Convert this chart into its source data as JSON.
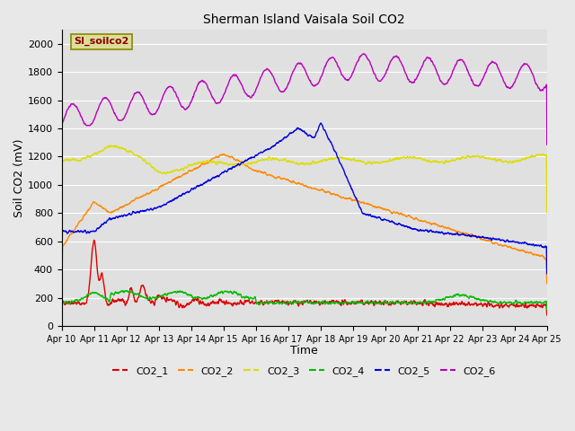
{
  "title": "Sherman Island Vaisala Soil CO2",
  "xlabel": "Time",
  "ylabel": "Soil CO2 (mV)",
  "ylim": [
    0,
    2100
  ],
  "yticks": [
    0,
    200,
    400,
    600,
    800,
    1000,
    1200,
    1400,
    1600,
    1800,
    2000
  ],
  "xlim": [
    0,
    15
  ],
  "xtick_labels": [
    "Apr 10",
    "Apr 11",
    "Apr 12",
    "Apr 13",
    "Apr 14",
    "Apr 15",
    "Apr 16",
    "Apr 17",
    "Apr 18",
    "Apr 19",
    "Apr 20",
    "Apr 21",
    "Apr 22",
    "Apr 23",
    "Apr 24",
    "Apr 25"
  ],
  "colors": {
    "CO2_1": "#dd0000",
    "CO2_2": "#ff8800",
    "CO2_3": "#dddd00",
    "CO2_4": "#00bb00",
    "CO2_5": "#0000dd",
    "CO2_6": "#bb00bb"
  },
  "legend_label": "SI_soilco2",
  "legend_box_facecolor": "#dddd99",
  "legend_box_edgecolor": "#888800",
  "legend_text_color": "#880000",
  "fig_facecolor": "#e8e8e8",
  "ax_facecolor": "#e0e0e0",
  "grid_color": "#ffffff",
  "linewidth": 1.0,
  "title_fontsize": 10,
  "axis_fontsize": 9,
  "tick_fontsize": 7
}
